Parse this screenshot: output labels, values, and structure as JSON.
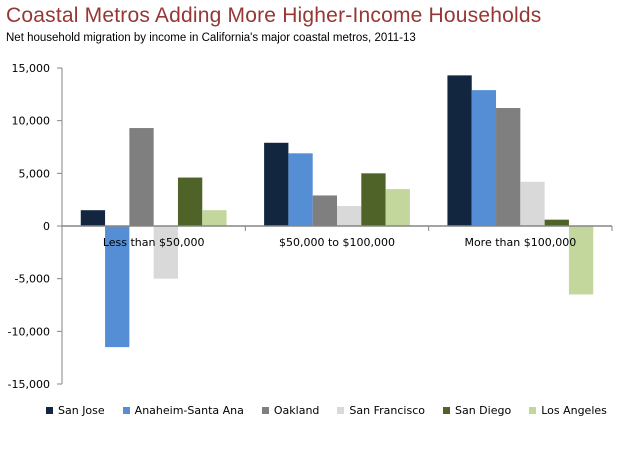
{
  "chart_data": {
    "type": "bar",
    "title": "Coastal Metros Adding More Higher-Income Households",
    "subtitle": "Net household migration by income in California's major coastal metros, 2011-13",
    "xlabel": "",
    "ylabel": "",
    "ylim": [
      -15000,
      15000
    ],
    "yticks": [
      15000,
      10000,
      5000,
      0,
      -5000,
      -10000,
      -15000
    ],
    "ytick_labels": [
      "15,000",
      "10,000",
      "5,000",
      "0",
      "-5,000",
      "-10,000",
      "-15,000"
    ],
    "grid": false,
    "legend_position": "bottom",
    "categories": [
      "Less than $50,000",
      "$50,000 to $100,000",
      "More than $100,000"
    ],
    "series": [
      {
        "name": "San Jose",
        "color": "#12263f",
        "values": [
          1500,
          7900,
          14300
        ]
      },
      {
        "name": "Anaheim-Santa Ana",
        "color": "#558ed5",
        "values": [
          -11500,
          6900,
          12900
        ]
      },
      {
        "name": "Oakland",
        "color": "#7f7f7f",
        "values": [
          9300,
          2900,
          11200
        ]
      },
      {
        "name": "San Francisco",
        "color": "#d9d9d9",
        "values": [
          -5000,
          1900,
          4200
        ]
      },
      {
        "name": "San Diego",
        "color": "#4f6228",
        "values": [
          4600,
          5000,
          600
        ]
      },
      {
        "name": "Los Angeles",
        "color": "#c3d69b",
        "values": [
          1500,
          3500,
          -6500
        ]
      }
    ]
  }
}
